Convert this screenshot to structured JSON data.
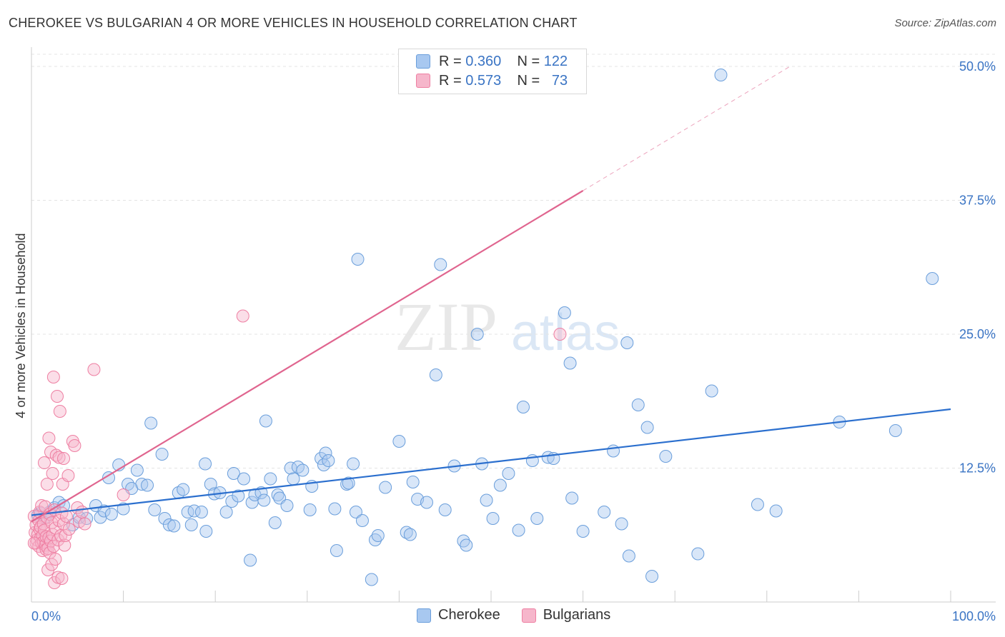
{
  "title": "CHEROKEE VS BULGARIAN 4 OR MORE VEHICLES IN HOUSEHOLD CORRELATION CHART",
  "source": "Source: ZipAtlas.com",
  "watermark": {
    "zip": "ZIP",
    "atlas": "atlas"
  },
  "legend": {
    "rows": [
      {
        "r_label": "R =",
        "r_value": "0.360",
        "n_label": "N =",
        "n_value": "122"
      },
      {
        "r_label": "R =",
        "r_value": "0.573",
        "n_label": "N =",
        "n_value": "73"
      }
    ]
  },
  "bottom_legend": {
    "cherokee": "Cherokee",
    "bulgarians": "Bulgarians"
  },
  "colors": {
    "cherokee_fill": "#a8c8f0",
    "cherokee_stroke": "#6a9edb",
    "cherokee_line": "#2b6fce",
    "bulgarian_fill": "#f6b6cb",
    "bulgarian_stroke": "#ee7fa2",
    "bulgarian_line": "#e0658f",
    "axis_label": "#3a74c4",
    "grid": "#e4e4e4"
  },
  "chart_data": {
    "type": "scatter",
    "ylabel": "4 or more Vehicles in Household",
    "xlim": [
      0,
      100
    ],
    "ylim": [
      0,
      50
    ],
    "x_tick_labels": {
      "left": "0.0%",
      "right": "100.0%"
    },
    "y_tick_labels": [
      "12.5%",
      "25.0%",
      "37.5%",
      "50.0%"
    ],
    "y_tick_values": [
      12.5,
      25.0,
      37.5,
      50.0
    ],
    "series": [
      {
        "name": "Cherokee",
        "trend": {
          "x0": 0,
          "y0": 8.1,
          "x1": 100,
          "y1": 18.0,
          "solid_to": 100
        },
        "points": [
          [
            0.7,
            8.1
          ],
          [
            1.0,
            8.3
          ],
          [
            1.5,
            7.9
          ],
          [
            2.0,
            8.4
          ],
          [
            2.5,
            8.8
          ],
          [
            3.0,
            9.3
          ],
          [
            3.5,
            9.0
          ],
          [
            4.5,
            7.2
          ],
          [
            5.2,
            7.9
          ],
          [
            6.0,
            7.8
          ],
          [
            7.0,
            9.0
          ],
          [
            7.5,
            7.9
          ],
          [
            7.9,
            8.5
          ],
          [
            8.4,
            11.6
          ],
          [
            8.7,
            8.2
          ],
          [
            9.5,
            12.8
          ],
          [
            10.0,
            8.7
          ],
          [
            10.5,
            11.0
          ],
          [
            10.9,
            10.6
          ],
          [
            11.5,
            12.3
          ],
          [
            12.0,
            11.0
          ],
          [
            12.6,
            10.9
          ],
          [
            13.0,
            16.7
          ],
          [
            13.4,
            8.6
          ],
          [
            14.2,
            13.8
          ],
          [
            14.5,
            7.8
          ],
          [
            15.0,
            7.2
          ],
          [
            15.5,
            7.1
          ],
          [
            16.0,
            10.2
          ],
          [
            16.5,
            10.5
          ],
          [
            17.0,
            8.4
          ],
          [
            17.4,
            7.2
          ],
          [
            17.7,
            8.5
          ],
          [
            18.5,
            8.4
          ],
          [
            18.9,
            12.9
          ],
          [
            19.0,
            6.6
          ],
          [
            19.5,
            11.0
          ],
          [
            19.9,
            10.1
          ],
          [
            20.5,
            10.2
          ],
          [
            21.2,
            8.4
          ],
          [
            21.8,
            9.4
          ],
          [
            22.0,
            12.0
          ],
          [
            22.5,
            9.9
          ],
          [
            23.1,
            11.5
          ],
          [
            23.8,
            3.9
          ],
          [
            24.0,
            9.3
          ],
          [
            24.3,
            10.0
          ],
          [
            25.0,
            10.2
          ],
          [
            25.3,
            9.5
          ],
          [
            25.5,
            16.9
          ],
          [
            26.0,
            11.5
          ],
          [
            26.5,
            7.4
          ],
          [
            26.8,
            10.0
          ],
          [
            27.0,
            9.7
          ],
          [
            27.8,
            9.0
          ],
          [
            28.2,
            12.5
          ],
          [
            28.5,
            11.5
          ],
          [
            29.0,
            12.6
          ],
          [
            29.5,
            12.3
          ],
          [
            30.3,
            8.6
          ],
          [
            30.5,
            10.8
          ],
          [
            31.5,
            13.4
          ],
          [
            31.8,
            12.8
          ],
          [
            32.0,
            13.9
          ],
          [
            32.3,
            13.2
          ],
          [
            33.0,
            8.7
          ],
          [
            33.2,
            4.8
          ],
          [
            34.3,
            11.0
          ],
          [
            34.5,
            11.1
          ],
          [
            35.0,
            12.9
          ],
          [
            35.3,
            8.4
          ],
          [
            35.5,
            32.0
          ],
          [
            36.0,
            7.6
          ],
          [
            37.0,
            2.1
          ],
          [
            37.4,
            5.8
          ],
          [
            37.7,
            6.2
          ],
          [
            38.5,
            10.7
          ],
          [
            40.0,
            15.0
          ],
          [
            40.8,
            6.5
          ],
          [
            41.2,
            6.3
          ],
          [
            41.5,
            11.2
          ],
          [
            42.0,
            9.6
          ],
          [
            43.0,
            9.3
          ],
          [
            44.0,
            21.2
          ],
          [
            44.5,
            31.5
          ],
          [
            45.0,
            8.6
          ],
          [
            46.0,
            12.7
          ],
          [
            47.0,
            5.7
          ],
          [
            47.3,
            5.3
          ],
          [
            48.5,
            25.0
          ],
          [
            49.0,
            12.9
          ],
          [
            49.5,
            9.5
          ],
          [
            50.2,
            7.8
          ],
          [
            51.0,
            10.9
          ],
          [
            51.9,
            12.0
          ],
          [
            53.0,
            6.7
          ],
          [
            53.5,
            18.2
          ],
          [
            54.5,
            13.2
          ],
          [
            55.0,
            7.8
          ],
          [
            56.2,
            13.5
          ],
          [
            56.8,
            13.4
          ],
          [
            58.0,
            27.0
          ],
          [
            58.6,
            22.3
          ],
          [
            58.8,
            9.7
          ],
          [
            60.0,
            6.6
          ],
          [
            62.3,
            8.4
          ],
          [
            63.3,
            14.1
          ],
          [
            64.2,
            7.3
          ],
          [
            64.8,
            24.2
          ],
          [
            65.0,
            4.3
          ],
          [
            66.0,
            18.4
          ],
          [
            67.0,
            16.3
          ],
          [
            67.5,
            2.4
          ],
          [
            69.0,
            13.6
          ],
          [
            72.5,
            4.5
          ],
          [
            74.0,
            19.7
          ],
          [
            75.0,
            49.2
          ],
          [
            79.0,
            9.1
          ],
          [
            81.0,
            8.5
          ],
          [
            87.9,
            16.8
          ],
          [
            94.0,
            16.0
          ],
          [
            98.0,
            30.2
          ]
        ]
      },
      {
        "name": "Bulgarians",
        "trend": {
          "x0": 0,
          "y0": 7.5,
          "x1": 100,
          "y1": 59.0,
          "solid_to": 60
        },
        "points": [
          [
            0.3,
            8.0
          ],
          [
            0.4,
            6.5
          ],
          [
            0.5,
            7.2
          ],
          [
            0.5,
            5.5
          ],
          [
            0.6,
            5.8
          ],
          [
            0.7,
            6.3
          ],
          [
            0.8,
            7.6
          ],
          [
            0.8,
            5.2
          ],
          [
            0.9,
            6.8
          ],
          [
            0.9,
            8.4
          ],
          [
            1.0,
            6.0
          ],
          [
            1.0,
            7.0
          ],
          [
            1.1,
            5.5
          ],
          [
            1.1,
            9.0
          ],
          [
            1.2,
            6.2
          ],
          [
            1.2,
            4.8
          ],
          [
            1.3,
            7.3
          ],
          [
            1.3,
            5.6
          ],
          [
            1.4,
            6.7
          ],
          [
            1.4,
            13.0
          ],
          [
            1.5,
            8.9
          ],
          [
            1.5,
            5.3
          ],
          [
            1.6,
            6.1
          ],
          [
            1.6,
            4.9
          ],
          [
            1.7,
            7.9
          ],
          [
            1.7,
            11.0
          ],
          [
            1.8,
            5.0
          ],
          [
            1.8,
            3.0
          ],
          [
            1.9,
            6.0
          ],
          [
            1.9,
            15.3
          ],
          [
            2.0,
            8.2
          ],
          [
            2.0,
            4.6
          ],
          [
            2.1,
            5.7
          ],
          [
            2.1,
            14.0
          ],
          [
            2.2,
            7.4
          ],
          [
            2.2,
            3.5
          ],
          [
            2.3,
            6.3
          ],
          [
            2.3,
            12.0
          ],
          [
            2.4,
            5.2
          ],
          [
            2.4,
            21.0
          ],
          [
            2.5,
            8.6
          ],
          [
            2.5,
            1.8
          ],
          [
            2.6,
            6.9
          ],
          [
            2.6,
            4.0
          ],
          [
            2.7,
            13.7
          ],
          [
            2.8,
            19.2
          ],
          [
            2.9,
            5.8
          ],
          [
            2.9,
            2.3
          ],
          [
            3.0,
            7.6
          ],
          [
            3.0,
            13.5
          ],
          [
            3.1,
            17.8
          ],
          [
            3.2,
            6.2
          ],
          [
            3.3,
            8.3
          ],
          [
            3.3,
            2.2
          ],
          [
            3.4,
            11.0
          ],
          [
            3.5,
            13.4
          ],
          [
            3.5,
            7.3
          ],
          [
            3.6,
            5.3
          ],
          [
            3.7,
            6.2
          ],
          [
            3.8,
            8.0
          ],
          [
            4.0,
            11.8
          ],
          [
            4.1,
            6.8
          ],
          [
            4.5,
            15.0
          ],
          [
            4.7,
            14.6
          ],
          [
            5.0,
            8.8
          ],
          [
            5.2,
            7.5
          ],
          [
            5.5,
            8.4
          ],
          [
            5.8,
            7.3
          ],
          [
            6.8,
            21.7
          ],
          [
            10.0,
            10.0
          ],
          [
            23.0,
            26.7
          ],
          [
            57.5,
            25.0
          ],
          [
            0.3,
            5.5
          ]
        ]
      }
    ]
  }
}
